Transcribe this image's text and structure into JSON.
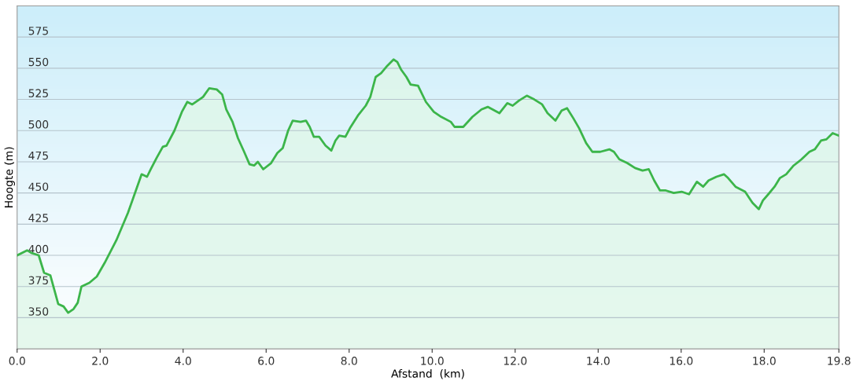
{
  "chart_data": {
    "type": "area",
    "xlabel": "Afstand  (km)",
    "ylabel": "Hoogte (m)",
    "xlim": [
      0,
      19.8
    ],
    "ylim": [
      325,
      600
    ],
    "xticks": [
      {
        "value": 0,
        "label": "0.0"
      },
      {
        "value": 2,
        "label": "2.0"
      },
      {
        "value": 4,
        "label": "4.0"
      },
      {
        "value": 6,
        "label": "6.0"
      },
      {
        "value": 8,
        "label": "8.0"
      },
      {
        "value": 10,
        "label": "10.0"
      },
      {
        "value": 12,
        "label": "12.0"
      },
      {
        "value": 14,
        "label": "14.0"
      },
      {
        "value": 16,
        "label": "16.0"
      },
      {
        "value": 18,
        "label": "18.0"
      },
      {
        "value": 19.8,
        "label": "19.8"
      }
    ],
    "yticks": [
      350,
      375,
      400,
      425,
      450,
      475,
      500,
      525,
      550,
      575
    ],
    "grid": "y",
    "legend": false,
    "marker": "none",
    "line_style": "solid",
    "series": [
      {
        "color": "#3cb54a",
        "x": [
          0,
          0.24,
          0.34,
          0.52,
          0.65,
          0.8,
          0.99,
          1.12,
          1.23,
          1.36,
          1.46,
          1.55,
          1.74,
          1.92,
          2.11,
          2.39,
          2.67,
          3.0,
          3.13,
          3.22,
          3.36,
          3.51,
          3.6,
          3.79,
          3.97,
          4.1,
          4.22,
          4.35,
          4.48,
          4.63,
          4.81,
          4.94,
          5.04,
          5.19,
          5.32,
          5.47,
          5.6,
          5.71,
          5.8,
          5.93,
          6.12,
          6.27,
          6.4,
          6.53,
          6.64,
          6.83,
          6.96,
          7.05,
          7.15,
          7.28,
          7.43,
          7.57,
          7.67,
          7.76,
          7.91,
          8.02,
          8.21,
          8.4,
          8.51,
          8.64,
          8.77,
          8.92,
          9.07,
          9.16,
          9.25,
          9.38,
          9.48,
          9.66,
          9.85,
          10.04,
          10.22,
          10.45,
          10.54,
          10.75,
          10.97,
          11.19,
          11.34,
          11.62,
          11.81,
          11.94,
          12.09,
          12.28,
          12.46,
          12.65,
          12.78,
          12.97,
          13.12,
          13.25,
          13.4,
          13.54,
          13.71,
          13.86,
          14.05,
          14.27,
          14.38,
          14.51,
          14.7,
          14.89,
          15.07,
          15.22,
          15.35,
          15.49,
          15.63,
          15.82,
          16.01,
          16.19,
          16.38,
          16.53,
          16.66,
          16.85,
          17.03,
          17.13,
          17.31,
          17.54,
          17.72,
          17.87,
          17.97,
          18.1,
          18.25,
          18.38,
          18.53,
          18.71,
          18.9,
          19.09,
          19.22,
          19.37,
          19.5,
          19.65,
          19.8
        ],
        "values": [
          400,
          404,
          402,
          400,
          386,
          384,
          361,
          359,
          354,
          357,
          362,
          375,
          378,
          383,
          394,
          412,
          434,
          465,
          463,
          469,
          478,
          487,
          488,
          500,
          515,
          523,
          521,
          524,
          527,
          534,
          533,
          529,
          517,
          507,
          494,
          483,
          473,
          472,
          475,
          469,
          474,
          482,
          486,
          500,
          508,
          507,
          508,
          503,
          495,
          495,
          488,
          484,
          492,
          496,
          495,
          502,
          512,
          520,
          527,
          543,
          546,
          552,
          557,
          555,
          549,
          543,
          537,
          536,
          523,
          515,
          511,
          507,
          503,
          503,
          511,
          517,
          519,
          514,
          522,
          520,
          524,
          528,
          525,
          521,
          514,
          508,
          516,
          518,
          510,
          502,
          490,
          483,
          483,
          485,
          483,
          477,
          474,
          470,
          468,
          469,
          460,
          452,
          452,
          450,
          451,
          449,
          459,
          455,
          460,
          463,
          465,
          462,
          455,
          451,
          442,
          437,
          444,
          449,
          455,
          462,
          465,
          472,
          477,
          483,
          485,
          492,
          493,
          498,
          496
        ]
      }
    ]
  }
}
